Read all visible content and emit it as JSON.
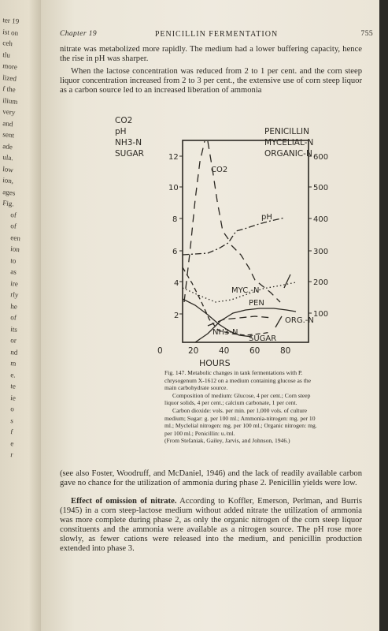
{
  "prev_page_fragments": [
    "ter 19",
    "ist on",
    "ceh",
    "tlu",
    "more",
    "lized",
    "f the",
    "ilium",
    "very",
    "and",
    "sent",
    "ade",
    "ula.",
    "low",
    "ion,",
    "ages",
    "Fig.",
    "of",
    "of",
    "een",
    "ion",
    "to",
    "as",
    "ire",
    "rly",
    "he",
    "of",
    "its",
    "or",
    "nd",
    "m",
    "e.",
    "te",
    "ie",
    "o",
    "s",
    "f",
    "e",
    "r"
  ],
  "header": {
    "chapter": "Chapter 19",
    "title": "PENICILLIN FERMENTATION",
    "page_number": "755"
  },
  "para1": "nitrate was metabolized more rapidly. The medium had a lower buffering capacity, hence the rise in pH was sharper.",
  "para2": "When the lactose concentration was reduced from 2 to 1 per cent. and the corn steep liquor concentration increased from 2 to 3 per cent., the extensive use of corn steep liquor as a carbon source led to an increased liberation of ammonia",
  "figure": {
    "left_legend": [
      "CO2",
      "pH",
      "NH3-N",
      "SUGAR"
    ],
    "right_legend": [
      "PENICILLIN",
      "MYCELIAL-N",
      "ORGANIC-N"
    ],
    "left_ticks": [
      "12",
      "10",
      "8",
      "6",
      "4",
      "2",
      "0"
    ],
    "right_ticks": [
      "600",
      "500",
      "400",
      "300",
      "200",
      "100"
    ],
    "x_ticks": [
      "0",
      "20",
      "40",
      "60",
      "80"
    ],
    "x_label": "HOURS",
    "curve_labels": {
      "co2": "CO2",
      "ph": "pH",
      "myc": "MYC.-N",
      "pen": "PEN",
      "org": "ORG.-N",
      "nh3": "NH3-N",
      "sugar": "SUGAR"
    }
  },
  "caption": {
    "title": "Fig. 147. Metabolic changes in tank fermentations with P. chrysogenum X-1612 on a medium containing glucose as the main carbohydrate source.",
    "composition": "Composition of medium: Glucose, 4 per cent.; Corn steep liquor solids, 4 per cent.; calcium carbonate, 1 per cent.",
    "units": "Carbon dioxide: vols. per min. per 1,000 vols. of culture medium; Sugar: g. per 100 ml.; Ammonia-nitrogen: mg. per 10 ml.; Myclelial nitrogen: mg. per 100 ml.; Organic nitrogen: mg. per 100 ml.; Penicillin: u./ml.",
    "source": "(From Stefaniak, Gailey, Jarvis, and Johnson, 1946.)"
  },
  "para3": "(see also Foster, Woodruff, and McDaniel, 1946) and the lack of readily available carbon gave no chance for the utilization of ammonia during phase 2. Penicillin yields were low.",
  "para4_heading": "Effect of omission of nitrate.",
  "para4_body": " According to Koffler, Emerson, Perlman, and Burris (1945) in a corn steep-lactose medium without added nitrate the utilization of ammonia was more complete during phase 2, as only the organic nitrogen of the corn steep liquor constituents and the ammonia were available as a nitrogen source. The pH rose more slowly, as fewer cations were released into the medium, and penicillin production extended into phase 3."
}
